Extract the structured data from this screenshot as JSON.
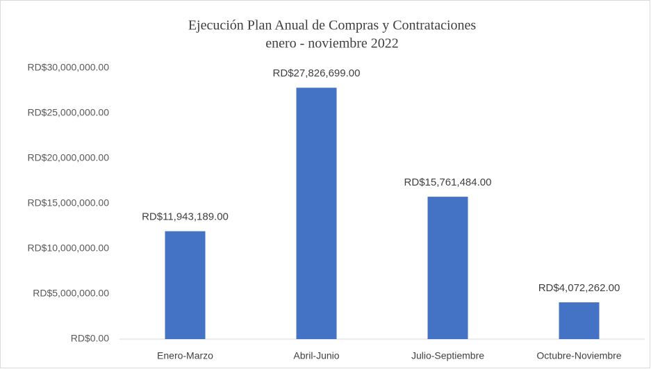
{
  "chart_data": {
    "type": "bar",
    "title": "Ejecución Plan Anual de Compras y Contrataciones",
    "subtitle": "enero - noviembre 2022",
    "categories": [
      "Enero-Marzo",
      "Abril-Junio",
      "Julio-Septiembre",
      "Octubre-Noviembre"
    ],
    "values": [
      11943189,
      27826699,
      15761484,
      4072262
    ],
    "value_labels": [
      "RD$11,943,189.00",
      "RD$27,826,699.00",
      "RD$15,761,484.00",
      "RD$4,072,262.00"
    ],
    "color": "#4472c4",
    "ylim": [
      0,
      30000000
    ],
    "yticks": [
      {
        "value": 0,
        "label": "RD$0.00"
      },
      {
        "value": 5000000,
        "label": "RD$5,000,000.00"
      },
      {
        "value": 10000000,
        "label": "RD$10,000,000.00"
      },
      {
        "value": 15000000,
        "label": "RD$15,000,000.00"
      },
      {
        "value": 20000000,
        "label": "RD$20,000,000.00"
      },
      {
        "value": 25000000,
        "label": "RD$25,000,000.00"
      },
      {
        "value": 30000000,
        "label": "RD$30,000,000.00"
      }
    ],
    "grid": false
  }
}
